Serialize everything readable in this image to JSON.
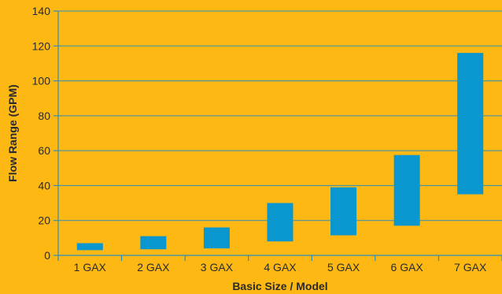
{
  "chart_data": {
    "type": "bar",
    "subtype": "floating-range",
    "categories": [
      "1 GAX",
      "2 GAX",
      "3 GAX",
      "4 GAX",
      "5 GAX",
      "6 GAX",
      "7 GAX"
    ],
    "series": [
      {
        "low": [
          3,
          3.5,
          4,
          8,
          11.5,
          17,
          35
        ],
        "high": [
          7,
          11,
          16,
          30,
          39,
          57.5,
          116
        ]
      }
    ],
    "title": "",
    "xlabel": "Basic Size / Model",
    "ylabel": "Flow Range (GPM)",
    "ylim": [
      0,
      140
    ],
    "yticks": [
      0,
      20,
      40,
      60,
      80,
      100,
      120,
      140
    ],
    "grid": true,
    "legend": "none"
  },
  "colors": {
    "background": "#FDB813",
    "bar": "#0A96CE",
    "grid": "#2E8FB8",
    "text": "#2b2b2b"
  }
}
